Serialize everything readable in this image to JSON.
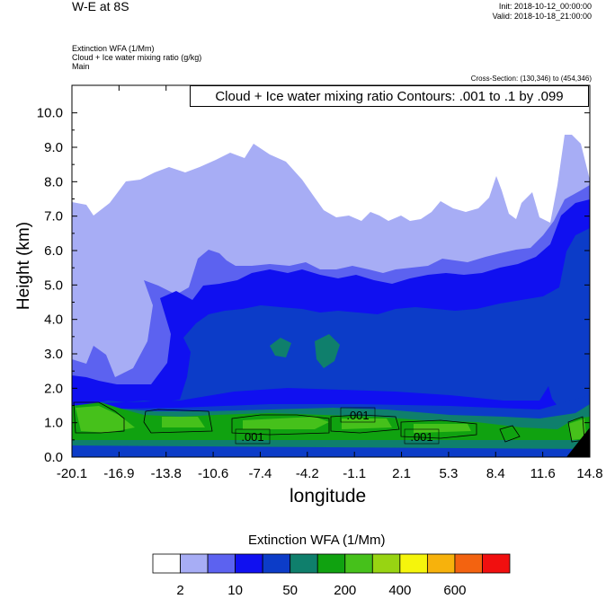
{
  "header": {
    "title": "W-E at 8S",
    "init": "Init: 2018-10-12_00:00:00",
    "valid": "Valid: 2018-10-18_21:00:00",
    "field1": "Extinction WFA   (1/Mm)",
    "field2": "Cloud + Ice water mixing ratio   (g/kg)",
    "field3": "Main",
    "cross_section": "Cross-Section: (130,346) to (454,346)"
  },
  "contour_info": "Cloud + Ice water mixing ratio Contours: .001 to .1 by .099",
  "chart_data": {
    "type": "heatmap",
    "xlabel": "longitude",
    "ylabel": "Height (km)",
    "xticks": [
      "-20.1",
      "-16.9",
      "-13.8",
      "-10.6",
      "-7.4",
      "-4.2",
      "-1.1",
      "2.1",
      "5.3",
      "8.4",
      "11.6",
      "14.8"
    ],
    "yticks": [
      "0.0",
      "1.0",
      "2.0",
      "3.0",
      "4.0",
      "5.0",
      "6.0",
      "7.0",
      "8.0",
      "9.0",
      "10.0"
    ],
    "xlim": [
      -20.1,
      14.8
    ],
    "ylim": [
      0,
      10.8
    ],
    "contour_labels": [
      ".001",
      ".001",
      ".001"
    ],
    "colorbar": {
      "title": "Extinction WFA  (1/Mm)",
      "colors": [
        "#ffffff",
        "#a7adf5",
        "#5c62f0",
        "#1010f0",
        "#0c3cc8",
        "#0f7f6c",
        "#10a210",
        "#46c11b",
        "#98d412",
        "#f5f50c",
        "#f7b20c",
        "#f36310",
        "#f10f0f"
      ],
      "labels": [
        "2",
        "10",
        "50",
        "200",
        "400",
        "600"
      ]
    }
  }
}
